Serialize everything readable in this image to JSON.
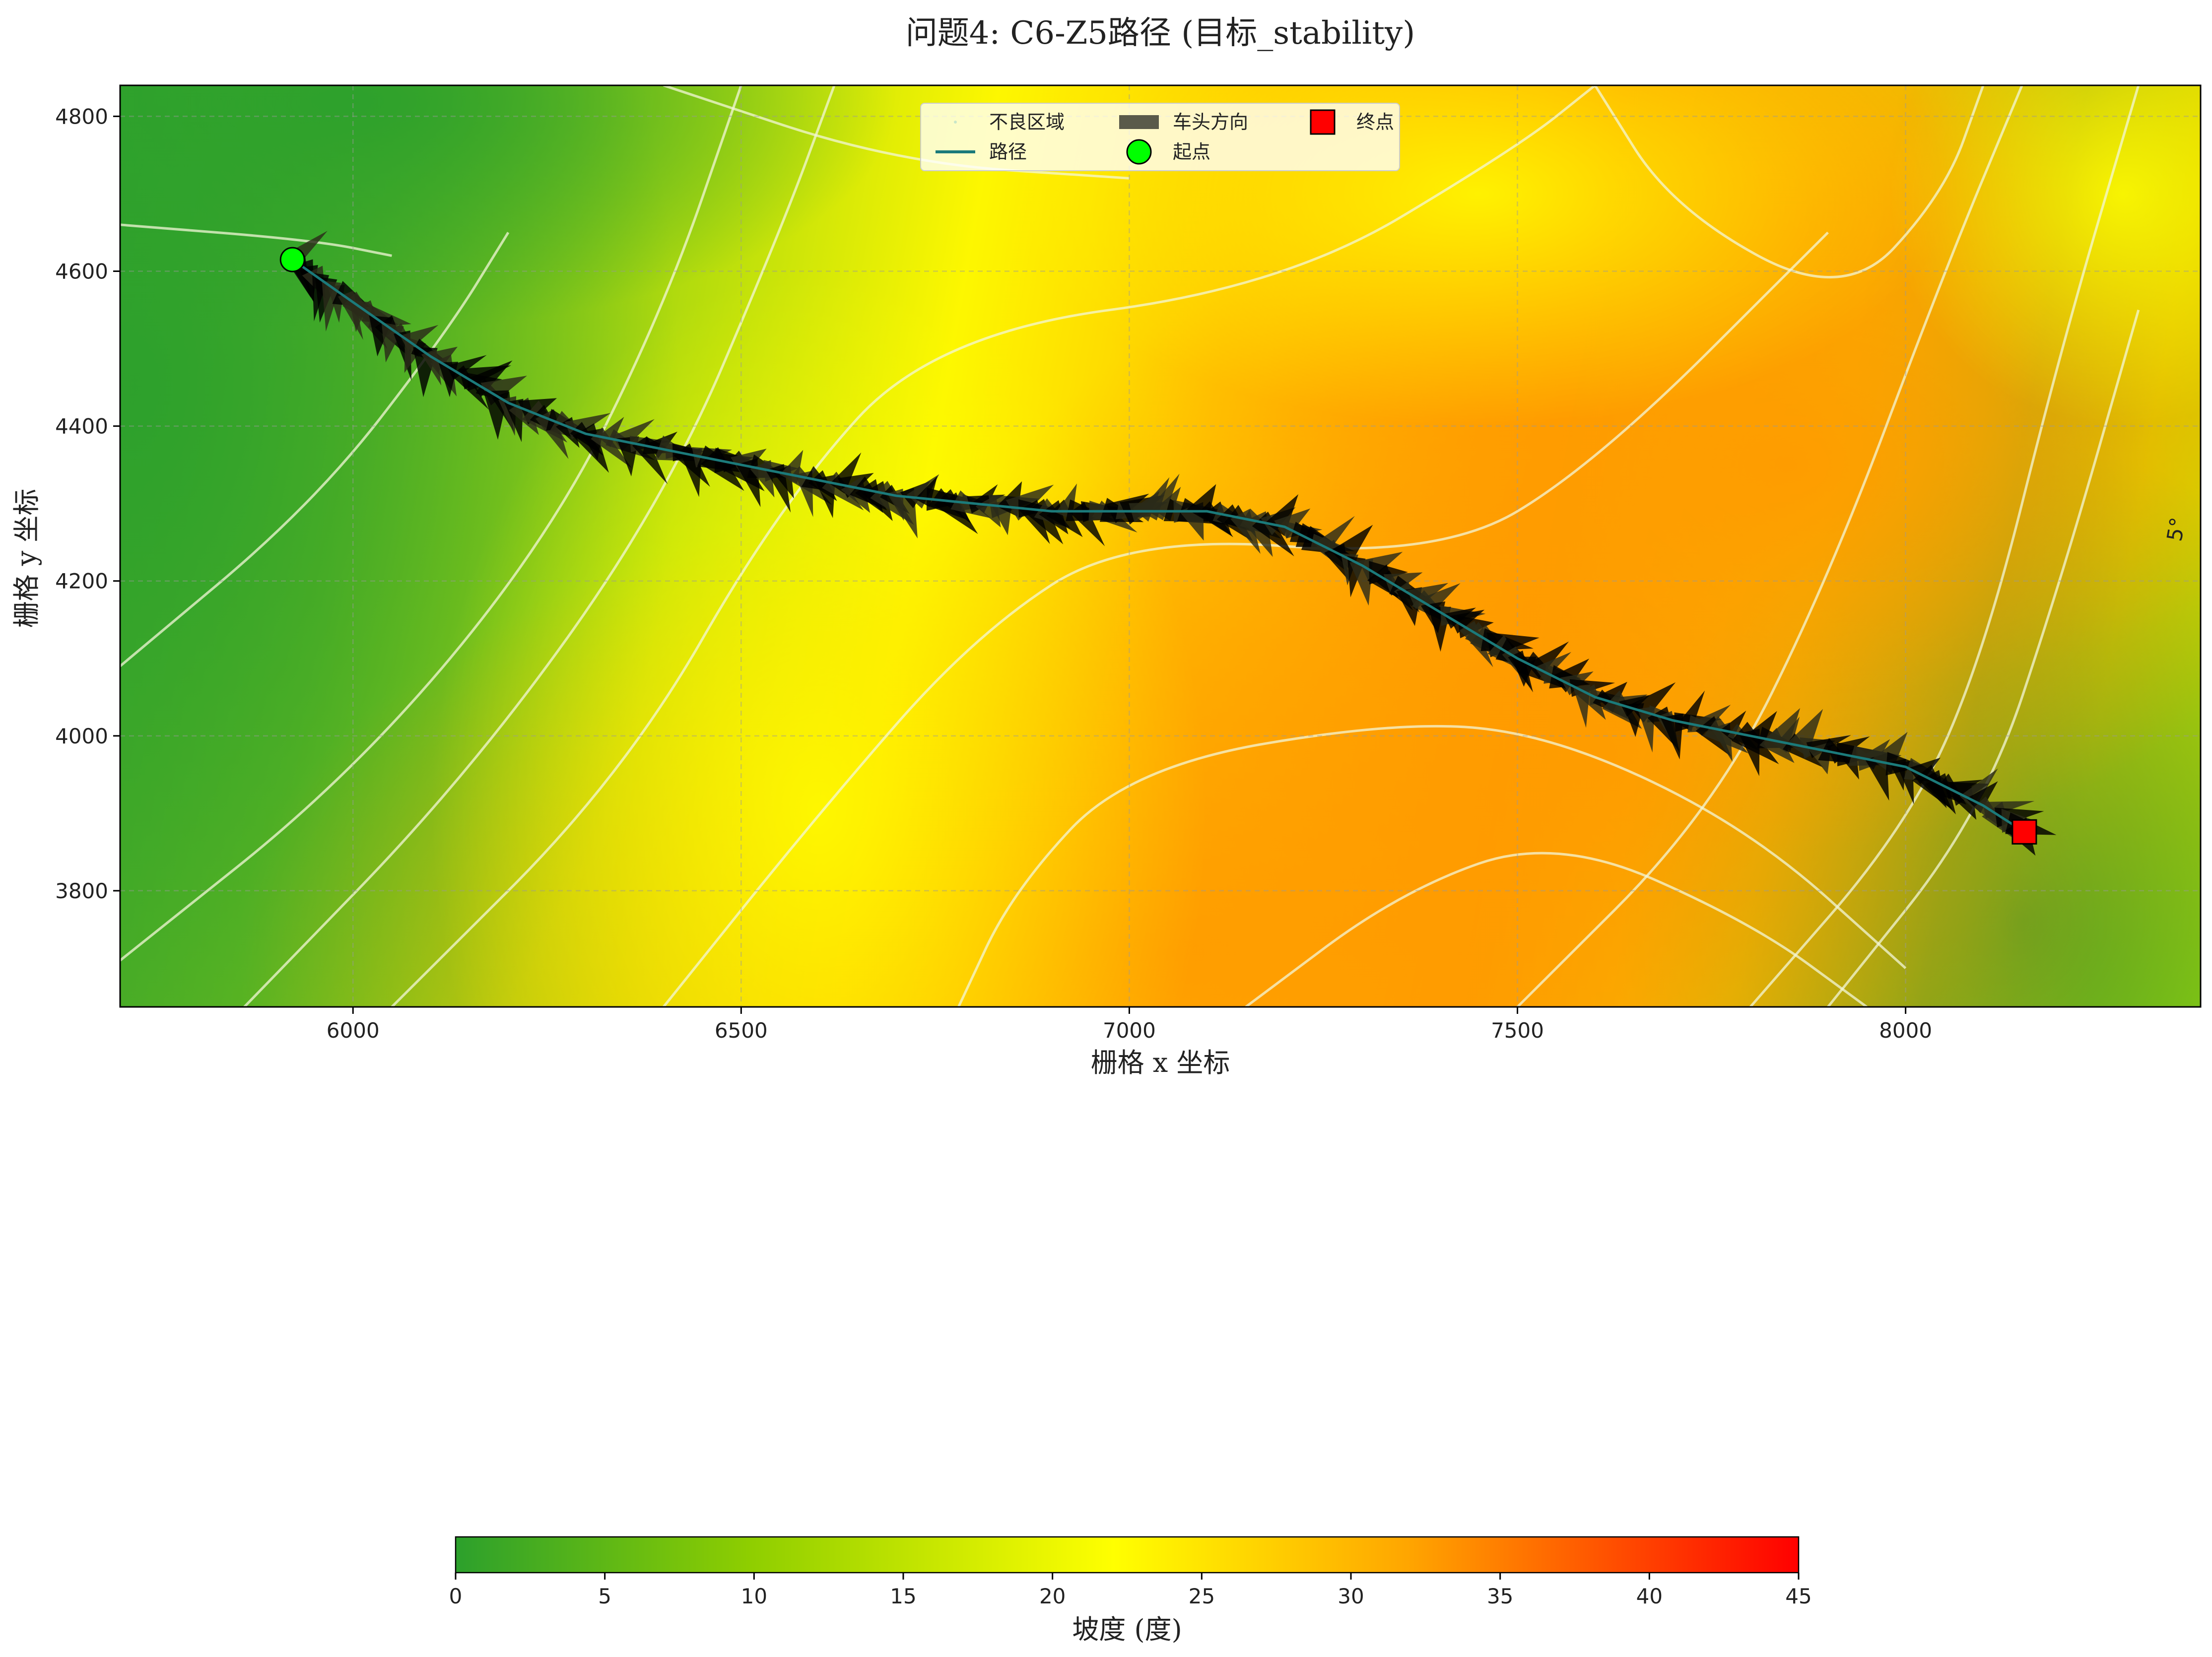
{
  "chart_data": {
    "type": "heatmap",
    "title": "问题4: C6-Z5路径 (目标_stability)",
    "xlabel": "栅格 x 坐标",
    "ylabel": "栅格 y 坐标",
    "xlim": [
      5700,
      8380
    ],
    "ylim": [
      3650,
      4840
    ],
    "xticks": [
      "6000",
      "6500",
      "7000",
      "7500",
      "8000"
    ],
    "yticks": [
      "3800",
      "4000",
      "4200",
      "4400",
      "4600",
      "4800"
    ],
    "grid": true,
    "legend_position": "top-center",
    "legend": [
      {
        "label": "不良区域",
        "marker": "dot",
        "color": "#c8e6c9"
      },
      {
        "label": "车头方向",
        "marker": "arrow-patch",
        "color": "#5a5a4a"
      },
      {
        "label": "终点",
        "marker": "square",
        "color": "#ff0000"
      },
      {
        "label": "路径",
        "marker": "line",
        "color": "#1b7a7a"
      },
      {
        "label": "起点",
        "marker": "circle",
        "color": "#00ff00"
      }
    ],
    "start": {
      "x": 5922,
      "y": 4615
    },
    "end": {
      "x": 8153,
      "y": 3876
    },
    "path": [
      {
        "x": 5922,
        "y": 4615
      },
      {
        "x": 6000,
        "y": 4560
      },
      {
        "x": 6100,
        "y": 4490
      },
      {
        "x": 6200,
        "y": 4430
      },
      {
        "x": 6300,
        "y": 4390
      },
      {
        "x": 6400,
        "y": 4370
      },
      {
        "x": 6500,
        "y": 4350
      },
      {
        "x": 6600,
        "y": 4330
      },
      {
        "x": 6700,
        "y": 4310
      },
      {
        "x": 6800,
        "y": 4300
      },
      {
        "x": 6900,
        "y": 4290
      },
      {
        "x": 7000,
        "y": 4290
      },
      {
        "x": 7100,
        "y": 4290
      },
      {
        "x": 7200,
        "y": 4270
      },
      {
        "x": 7300,
        "y": 4220
      },
      {
        "x": 7400,
        "y": 4160
      },
      {
        "x": 7500,
        "y": 4100
      },
      {
        "x": 7600,
        "y": 4050
      },
      {
        "x": 7700,
        "y": 4020
      },
      {
        "x": 7800,
        "y": 4000
      },
      {
        "x": 7900,
        "y": 3980
      },
      {
        "x": 8000,
        "y": 3960
      },
      {
        "x": 8100,
        "y": 3910
      },
      {
        "x": 8153,
        "y": 3876
      }
    ],
    "contour_annotation": "5°",
    "colorbar": {
      "label": "坡度 (度)",
      "range": [
        0,
        45
      ],
      "ticks": [
        "0",
        "5",
        "10",
        "15",
        "20",
        "25",
        "30",
        "35",
        "40",
        "45"
      ],
      "colors": [
        "#2ca02c",
        "#8fce00",
        "#ffff00",
        "#ffa500",
        "#ff0000"
      ],
      "color_stops": [
        0,
        10,
        22,
        32,
        45
      ]
    }
  }
}
